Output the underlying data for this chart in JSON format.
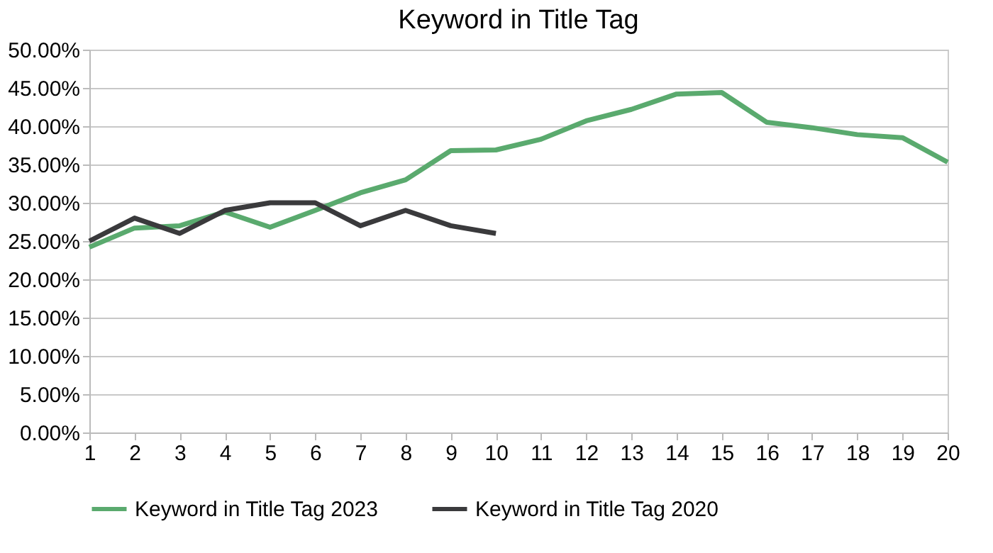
{
  "chart_data": {
    "type": "line",
    "title": "Keyword in Title Tag",
    "x": [
      1,
      2,
      3,
      4,
      5,
      6,
      7,
      8,
      9,
      10,
      11,
      12,
      13,
      14,
      15,
      16,
      17,
      18,
      19,
      20
    ],
    "xlim": [
      1,
      20
    ],
    "xticks": [
      1,
      2,
      3,
      4,
      5,
      6,
      7,
      8,
      9,
      10,
      11,
      12,
      13,
      14,
      15,
      16,
      17,
      18,
      19,
      20
    ],
    "ylim": [
      0,
      50
    ],
    "yticks": [
      {
        "value": 0,
        "label": "0.00%"
      },
      {
        "value": 5,
        "label": "5.00%"
      },
      {
        "value": 10,
        "label": "10.00%"
      },
      {
        "value": 15,
        "label": "15.00%"
      },
      {
        "value": 20,
        "label": "20.00%"
      },
      {
        "value": 25,
        "label": "25.00%"
      },
      {
        "value": 30,
        "label": "30.00%"
      },
      {
        "value": 35,
        "label": "35.00%"
      },
      {
        "value": 40,
        "label": "40.00%"
      },
      {
        "value": 45,
        "label": "45.00%"
      },
      {
        "value": 50,
        "label": "50.00%"
      }
    ],
    "grid": "y",
    "legend": "bottom",
    "marker": "none",
    "line_style": "solid",
    "series": [
      {
        "name": "Keyword in Title Tag 2023",
        "color": "#5aaa6e",
        "values": [
          24.2,
          26.7,
          27,
          28.8,
          26.8,
          29,
          31.3,
          33,
          36.8,
          36.9,
          38.3,
          40.7,
          42.2,
          44.2,
          44.4,
          40.5,
          39.8,
          38.9,
          38.5,
          35.3
        ]
      },
      {
        "name": "Keyword in Title Tag 2020",
        "color": "#3a3a3c",
        "x": [
          1,
          2,
          3,
          4,
          5,
          6,
          7,
          8,
          9,
          10
        ],
        "values": [
          25,
          28,
          26,
          29,
          30,
          30,
          27,
          29,
          27,
          26
        ]
      }
    ]
  }
}
